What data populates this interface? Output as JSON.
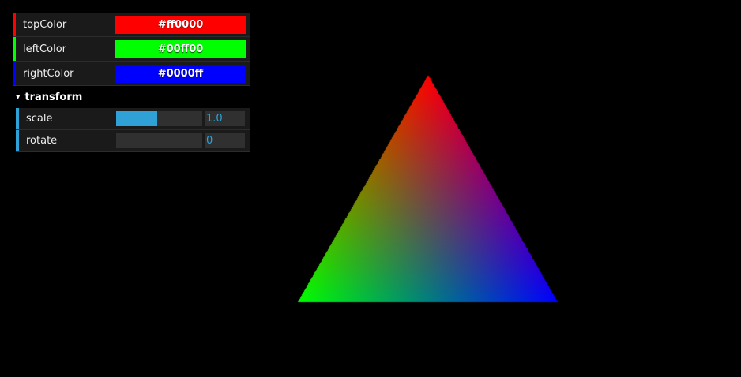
{
  "controls": {
    "top_color": {
      "label": "topColor",
      "value": "#ff0000",
      "color": "#ff0000"
    },
    "left_color": {
      "label": "leftColor",
      "value": "#00ff00",
      "color": "#00ff00"
    },
    "right_color": {
      "label": "rightColor",
      "value": "#0000ff",
      "color": "#0000ff"
    }
  },
  "transform": {
    "title": "transform",
    "scale": {
      "label": "scale",
      "value": "1.0",
      "fill_fraction": 0.48
    },
    "rotate": {
      "label": "rotate",
      "value": "0",
      "fill_fraction": 0.0
    }
  },
  "colors": {
    "background": "#000000",
    "panel_row": "#1a1a1a",
    "slider_accent": "#2fa1d6"
  }
}
